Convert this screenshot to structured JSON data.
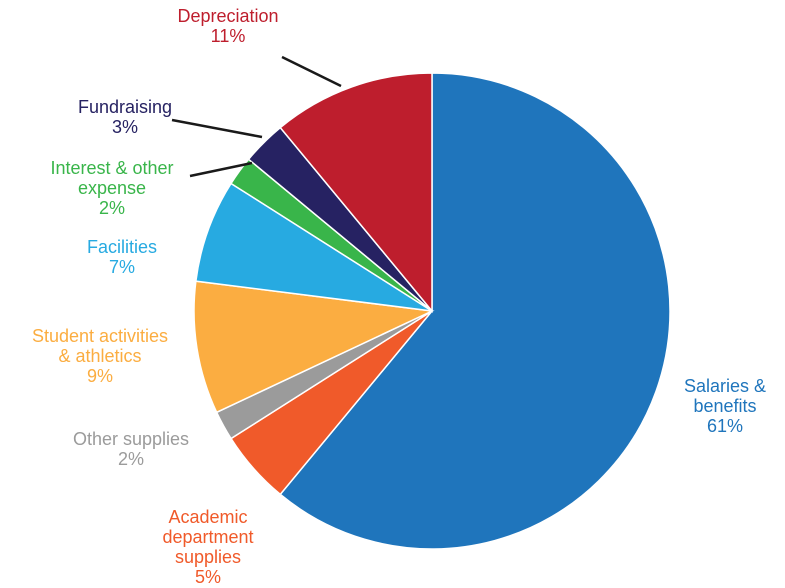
{
  "chart_data": {
    "type": "pie",
    "title": "",
    "slices": [
      {
        "label_lines": [
          "Salaries &",
          "benefits"
        ],
        "value_label": "61%",
        "value": 61,
        "color": "#1f75bc"
      },
      {
        "label_lines": [
          "Academic",
          "department",
          "supplies"
        ],
        "value_label": "5%",
        "value": 5,
        "color": "#f05a2a"
      },
      {
        "label_lines": [
          "Other supplies"
        ],
        "value_label": "2%",
        "value": 2,
        "color": "#9b9b9b"
      },
      {
        "label_lines": [
          "Student activities",
          "& athletics"
        ],
        "value_label": "9%",
        "value": 9,
        "color": "#fbad41"
      },
      {
        "label_lines": [
          "Facilities"
        ],
        "value_label": "7%",
        "value": 7,
        "color": "#27aae1"
      },
      {
        "label_lines": [
          "Interest & other",
          "expense"
        ],
        "value_label": "2%",
        "value": 2,
        "color": "#39b54a"
      },
      {
        "label_lines": [
          "Fundraising"
        ],
        "value_label": "3%",
        "value": 3,
        "color": "#262262"
      },
      {
        "label_lines": [
          "Depreciation"
        ],
        "value_label": "11%",
        "value": 11,
        "color": "#be1e2d"
      }
    ],
    "legend": "none"
  }
}
